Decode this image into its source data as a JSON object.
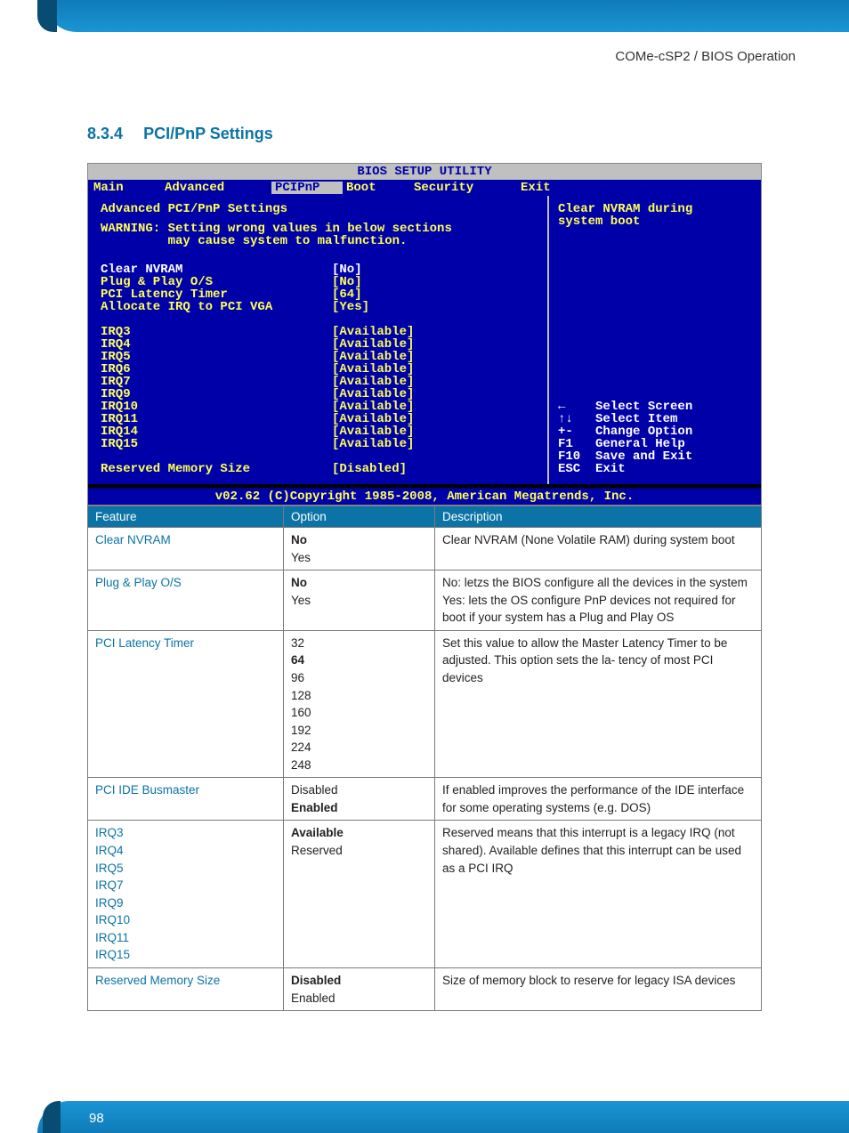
{
  "header": {
    "path": "COMe-cSP2 / BIOS Operation"
  },
  "section": {
    "number": "8.3.4",
    "title": "PCI/PnP Settings"
  },
  "bios": {
    "title": "BIOS SETUP UTILITY",
    "menu": {
      "main": "Main",
      "advanced": "Advanced",
      "pcipnp": "PCIPnP",
      "boot": "Boot",
      "security": "Security",
      "exit": "Exit"
    },
    "left": {
      "heading": "Advanced PCI/PnP Settings",
      "warning1": "WARNING: Setting wrong values in below sections",
      "warning2": "         may cause system to malfunction.",
      "items": [
        {
          "label": "Clear NVRAM",
          "value": "[No]",
          "selected": true
        },
        {
          "label": "Plug & Play O/S",
          "value": "[No]"
        },
        {
          "label": "PCI Latency Timer",
          "value": "[64]"
        },
        {
          "label": "Allocate IRQ to PCI VGA",
          "value": "[Yes]"
        }
      ],
      "irqs": [
        {
          "label": "IRQ3",
          "value": "[Available]"
        },
        {
          "label": "IRQ4",
          "value": "[Available]"
        },
        {
          "label": "IRQ5",
          "value": "[Available]"
        },
        {
          "label": "IRQ6",
          "value": "[Available]"
        },
        {
          "label": "IRQ7",
          "value": "[Available]"
        },
        {
          "label": "IRQ9",
          "value": "[Available]"
        },
        {
          "label": "IRQ10",
          "value": "[Available]"
        },
        {
          "label": "IRQ11",
          "value": "[Available]"
        },
        {
          "label": "IRQ14",
          "value": "[Available]"
        },
        {
          "label": "IRQ15",
          "value": "[Available]"
        }
      ],
      "reserved": {
        "label": "Reserved Memory Size",
        "value": "[Disabled]"
      }
    },
    "right": {
      "help1": "Clear NVRAM during",
      "help2": "system boot",
      "nav": "←    Select Screen\n↑↓   Select Item\n+-   Change Option\nF1   General Help\nF10  Save and Exit\nESC  Exit"
    },
    "footer": "v02.62 (C)Copyright 1985-2008, American Megatrends, Inc."
  },
  "table": {
    "headers": {
      "feature": "Feature",
      "option": "Option",
      "description": "Description"
    },
    "rows": [
      {
        "feature": "Clear NVRAM",
        "options": [
          {
            "t": "No",
            "b": true
          },
          {
            "t": "Yes"
          }
        ],
        "desc": "Clear NVRAM (None Volatile RAM) during system boot"
      },
      {
        "feature": "Plug & Play O/S",
        "options": [
          {
            "t": "No",
            "b": true
          },
          {
            "t": "Yes"
          }
        ],
        "desc": "No: letzs the BIOS configure all the devices in the system\nYes: lets the OS configure PnP devices not required for boot if your system has a Plug and Play OS"
      },
      {
        "feature": "PCI Latency Timer",
        "options": [
          {
            "t": "32"
          },
          {
            "t": "64",
            "b": true
          },
          {
            "t": "96"
          },
          {
            "t": "128"
          },
          {
            "t": "160"
          },
          {
            "t": "192"
          },
          {
            "t": "224"
          },
          {
            "t": "248"
          }
        ],
        "desc": "Set this value to allow the Master Latency Timer to be adjusted. This option sets the la- tency of most PCI devices"
      },
      {
        "feature": "PCI IDE Busmaster",
        "options": [
          {
            "t": "Disabled"
          },
          {
            "t": "Enabled",
            "b": true
          }
        ],
        "desc": "If enabled improves the performance of the IDE interface for some operating systems (e.g. DOS)"
      },
      {
        "feature": "IRQ3\nIRQ4\nIRQ5\nIRQ7\nIRQ9\nIRQ10\nIRQ11\nIRQ15",
        "options": [
          {
            "t": "Available",
            "b": true
          },
          {
            "t": "Reserved"
          }
        ],
        "desc": "Reserved means that this interrupt is a legacy IRQ (not shared). Available defines that this interrupt can be used as a PCI IRQ"
      },
      {
        "feature": "Reserved Memory Size",
        "options": [
          {
            "t": "Disabled",
            "b": true
          },
          {
            "t": "Enabled"
          }
        ],
        "desc": "Size of memory block to reserve for legacy ISA devices"
      }
    ]
  },
  "page": {
    "number": "98"
  },
  "colors": {
    "brand": "#0b73a6",
    "bios_bg": "#0000a8",
    "bios_yellow": "#ffff55",
    "bios_gray": "#c0c0c0"
  }
}
